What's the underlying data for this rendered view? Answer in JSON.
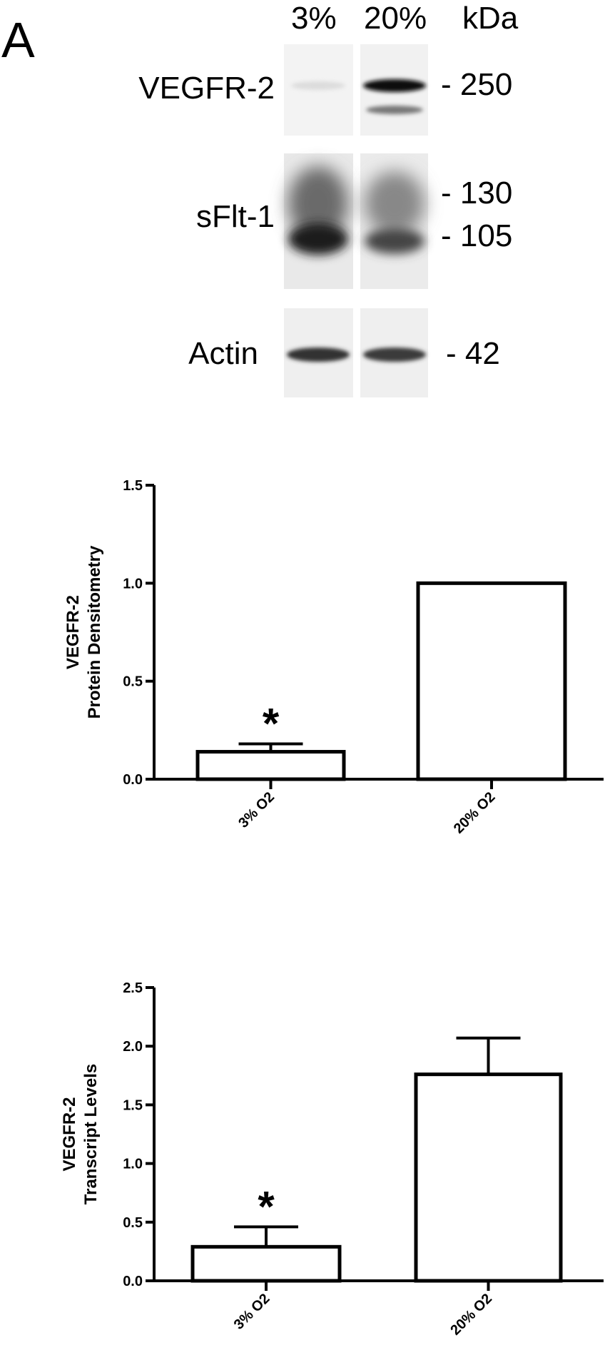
{
  "panel": {
    "letter": "A"
  },
  "blot": {
    "lane_labels": [
      "3%",
      "20%"
    ],
    "unit_label": "kDa",
    "rows": [
      {
        "name": "VEGFR-2",
        "markers": [
          "- 250"
        ]
      },
      {
        "name": "sFlt-1",
        "markers": [
          "- 130",
          "- 105"
        ]
      },
      {
        "name": "Actin",
        "markers": [
          "- 42"
        ]
      }
    ]
  },
  "chart_data": [
    {
      "type": "bar",
      "categories": [
        "3% O2",
        "20% O2"
      ],
      "values": [
        0.14,
        1.0
      ],
      "error": [
        0.04,
        0.0
      ],
      "significance": [
        "*",
        ""
      ],
      "ylabel": [
        "VEGFR-2",
        "Protein Densitometry"
      ],
      "ylim": [
        0,
        1.5
      ],
      "yticks": [
        "0.0",
        "0.5",
        "1.0",
        "1.5"
      ],
      "ytick_values": [
        0,
        0.5,
        1.0,
        1.5
      ],
      "grid": false
    },
    {
      "type": "bar",
      "categories": [
        "3% O2",
        "20% O2"
      ],
      "values": [
        0.29,
        1.76
      ],
      "error": [
        0.17,
        0.31
      ],
      "significance": [
        "*",
        ""
      ],
      "ylabel": [
        "VEGFR-2",
        "Transcript Levels"
      ],
      "ylim": [
        0,
        2.5
      ],
      "yticks": [
        "0.0",
        "0.5",
        "1.0",
        "1.5",
        "2.0",
        "2.5"
      ],
      "ytick_values": [
        0,
        0.5,
        1.0,
        1.5,
        2.0,
        2.5
      ],
      "grid": false
    }
  ]
}
